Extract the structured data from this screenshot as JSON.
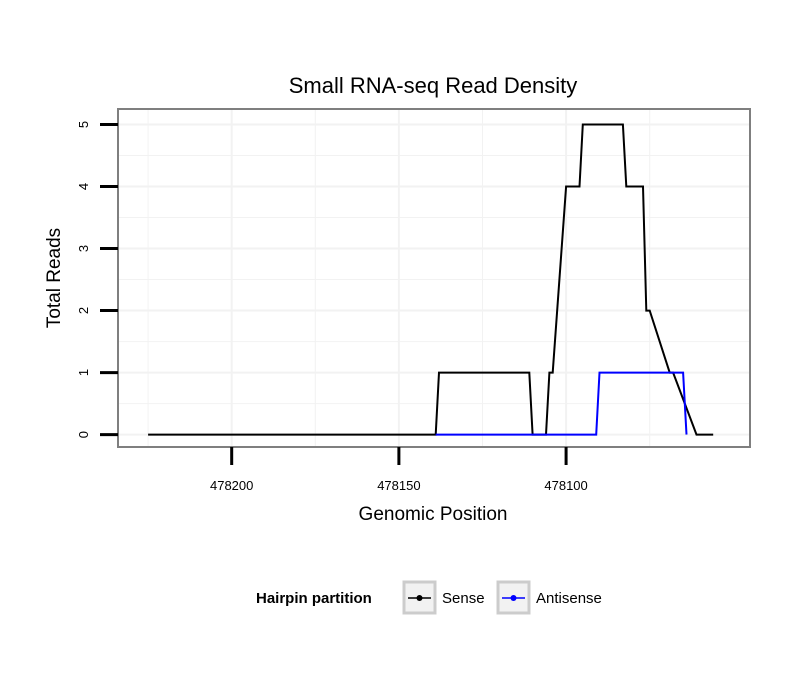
{
  "chart_data": {
    "type": "line",
    "title": "Small RNA-seq Read Density",
    "xlabel": "Genomic Position",
    "ylabel": "Total Reads",
    "x_reversed": true,
    "xlim": [
      478234,
      478045
    ],
    "ylim": [
      -0.2,
      5.25
    ],
    "x_ticks": [
      478200,
      478150,
      478100
    ],
    "x_tick_labels": [
      "478200",
      "478150",
      "478100"
    ],
    "y_ticks": [
      0,
      1,
      2,
      3,
      4,
      5
    ],
    "y_tick_labels": [
      "0",
      "1",
      "2",
      "3",
      "4",
      "5"
    ],
    "grid": true,
    "legend_position": "bottom",
    "legend_title": "Hairpin partition",
    "series": [
      {
        "name": "Sense",
        "color": "#000000",
        "x": [
          478225,
          478139,
          478138,
          478111,
          478110,
          478106,
          478105,
          478104,
          478100,
          478099,
          478096,
          478095,
          478083,
          478082,
          478078,
          478077,
          478076,
          478075,
          478069,
          478068,
          478061,
          478060,
          478056
        ],
        "y": [
          0,
          0,
          1,
          1,
          0,
          0,
          1,
          1,
          4,
          4,
          4,
          5,
          5,
          4,
          4,
          4,
          2,
          2,
          1,
          1,
          0,
          0,
          0
        ]
      },
      {
        "name": "Antisense",
        "color": "#0000ff",
        "x": [
          478139,
          478091,
          478090,
          478065,
          478064
        ],
        "y": [
          0,
          0,
          1,
          1,
          0
        ]
      }
    ]
  }
}
